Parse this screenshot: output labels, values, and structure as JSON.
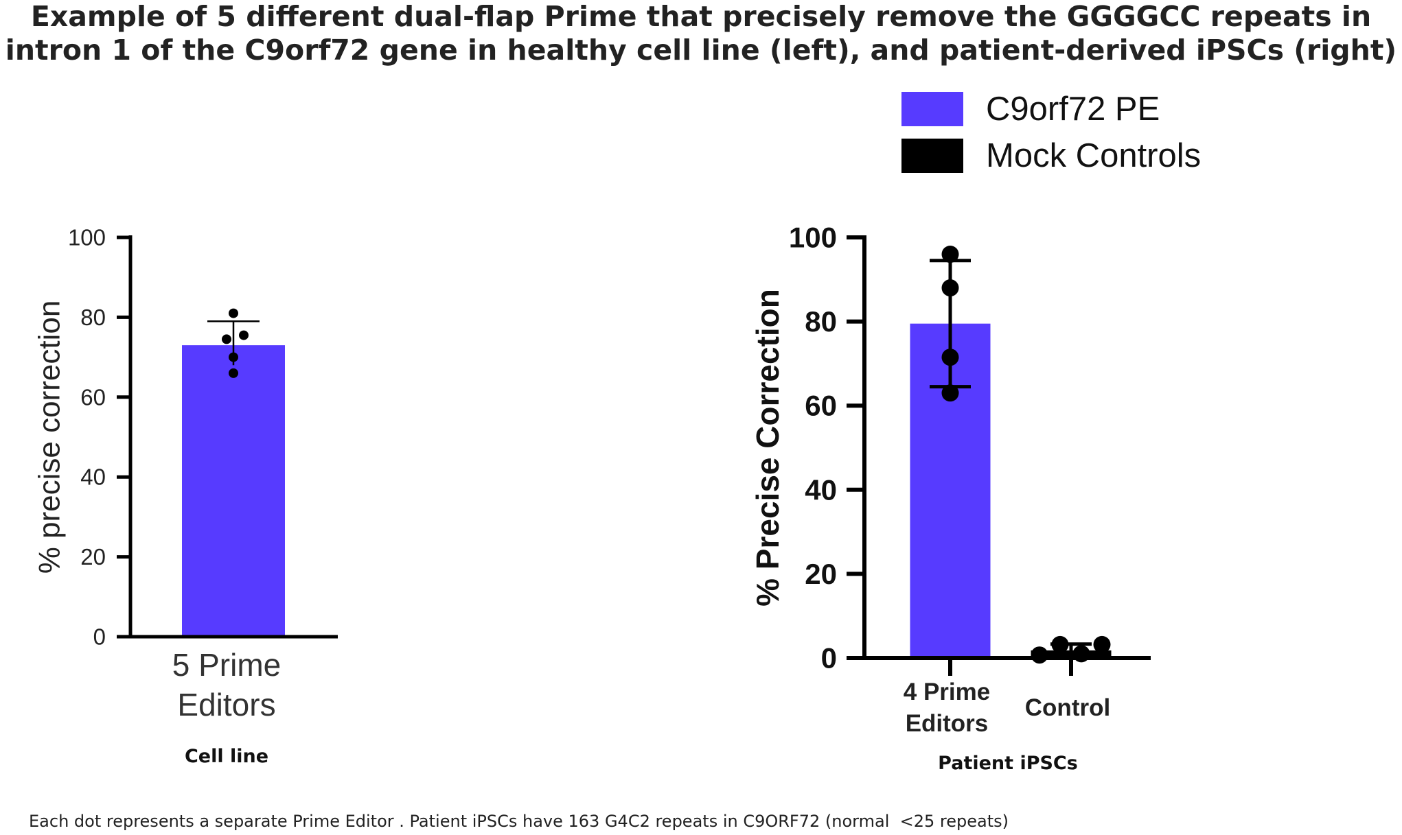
{
  "title_lines": [
    "Example of 5 different dual-flap Prime that precisely remove the GGGGCC repeats in",
    "intron 1 of the C9orf72 gene in healthy cell line (left), and patient-derived iPSCs (right)"
  ],
  "footnote": "Each dot represents a separate Prime Editor . Patient iPSCs have 163 G4C2 repeats in C9ORF72 (normal  <25 repeats)",
  "legend": [
    {
      "label": "C9orf72 PE",
      "color": "#573bff"
    },
    {
      "label": "Mock Controls",
      "color": "#000000"
    }
  ],
  "chart_data": [
    {
      "type": "bar",
      "panel": "left",
      "subtitle": "Cell line",
      "ylabel": "% precise correction",
      "ylim": [
        0,
        100
      ],
      "yticks": [
        0,
        20,
        40,
        60,
        80,
        100
      ],
      "grid": false,
      "bars": [
        {
          "category_lines": [
            "5 Prime",
            "Editors"
          ],
          "mean": 73,
          "error": [
            68,
            79
          ],
          "color": "#573bff",
          "points": [
            81,
            75.5,
            74.5,
            70,
            66
          ]
        }
      ]
    },
    {
      "type": "bar",
      "panel": "right",
      "subtitle": "Patient iPSCs",
      "ylabel": "% Precise Correction",
      "ylim": [
        0,
        100
      ],
      "yticks": [
        0,
        20,
        40,
        60,
        80,
        100
      ],
      "grid": false,
      "bars": [
        {
          "category_lines": [
            "4 Prime",
            "Editors"
          ],
          "mean": 79.5,
          "error": [
            64.5,
            94.5
          ],
          "color": "#573bff",
          "points": [
            96,
            88,
            71.5,
            63
          ]
        },
        {
          "category_lines": [
            "Control"
          ],
          "mean": 1.8,
          "error": [
            0.8,
            3.3
          ],
          "color": "#000000",
          "points": [
            0.7,
            3.2,
            1.0,
            3.2
          ]
        }
      ]
    }
  ]
}
